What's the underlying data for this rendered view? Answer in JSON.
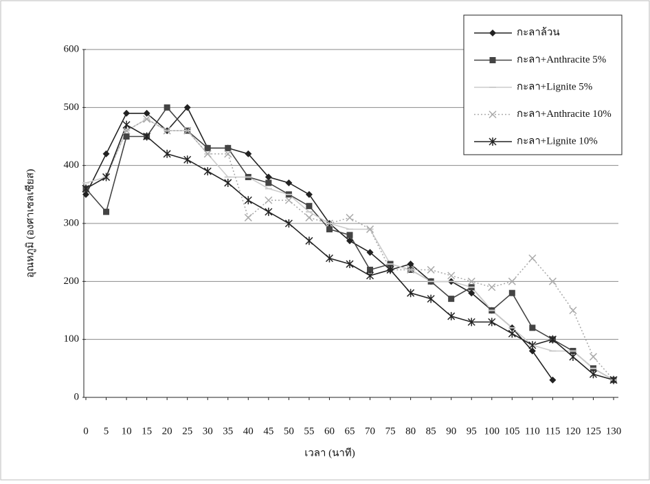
{
  "chart_data": {
    "type": "line",
    "x_label": "เวลา (นาที)",
    "y_label": "อุณหภูมิ (องศาเซลเซียส)",
    "x": [
      0,
      5,
      10,
      15,
      20,
      25,
      30,
      35,
      40,
      45,
      50,
      55,
      60,
      65,
      70,
      75,
      80,
      85,
      90,
      95,
      100,
      105,
      110,
      115,
      120,
      125,
      130
    ],
    "xlim": [
      0,
      130
    ],
    "xticks": [
      0,
      5,
      10,
      15,
      20,
      25,
      30,
      35,
      40,
      45,
      50,
      55,
      60,
      65,
      70,
      75,
      80,
      85,
      90,
      95,
      100,
      105,
      110,
      115,
      120,
      125,
      130
    ],
    "ylim": [
      0,
      600
    ],
    "yticks": [
      0,
      100,
      200,
      300,
      400,
      500,
      600
    ],
    "grid": true,
    "legend": "top-right",
    "series": [
      {
        "name": "กะลาล้วน",
        "color": "#222222",
        "marker": "diamond",
        "dash": "solid",
        "values": [
          350,
          420,
          490,
          490,
          460,
          500,
          430,
          430,
          420,
          380,
          370,
          350,
          300,
          270,
          250,
          220,
          230,
          200,
          200,
          180,
          150,
          120,
          80,
          30,
          null,
          null,
          null
        ]
      },
      {
        "name": "กะลา+Anthracite 5%",
        "color": "#444444",
        "marker": "square",
        "dash": "solid",
        "values": [
          360,
          320,
          450,
          450,
          500,
          460,
          430,
          430,
          380,
          370,
          350,
          330,
          290,
          280,
          220,
          230,
          220,
          200,
          170,
          190,
          150,
          180,
          120,
          100,
          80,
          50,
          30
        ]
      },
      {
        "name": "กะลา+Lignite 5%",
        "color": "#cccccc",
        "marker": "dash",
        "dash": "solid",
        "values": [
          370,
          380,
          460,
          480,
          460,
          460,
          420,
          380,
          380,
          360,
          350,
          320,
          300,
          290,
          290,
          230,
          220,
          200,
          200,
          190,
          150,
          120,
          90,
          80,
          80,
          50,
          30
        ]
      },
      {
        "name": "กะลา+Anthracite 10%",
        "color": "#aaaaaa",
        "marker": "cross",
        "dash": "dotted",
        "values": [
          360,
          380,
          460,
          480,
          460,
          460,
          420,
          420,
          310,
          340,
          340,
          310,
          300,
          310,
          290,
          220,
          220,
          220,
          210,
          200,
          190,
          200,
          240,
          200,
          150,
          70,
          30
        ]
      },
      {
        "name": "กะลา+Lignite 10%",
        "color": "#222222",
        "marker": "star",
        "dash": "solid",
        "values": [
          360,
          380,
          470,
          450,
          420,
          410,
          390,
          370,
          340,
          320,
          300,
          270,
          240,
          230,
          210,
          220,
          180,
          170,
          140,
          130,
          130,
          110,
          90,
          100,
          70,
          40,
          30
        ]
      }
    ]
  }
}
